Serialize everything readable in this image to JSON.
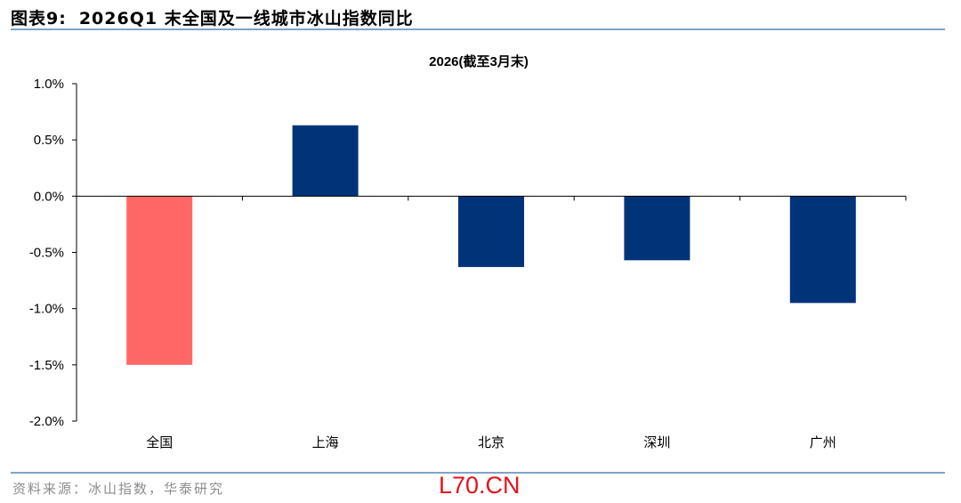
{
  "header": {
    "figure_label": "图表9:",
    "figure_title": "2026Q1 末全国及一线城市冰山指数同比"
  },
  "footer": {
    "source": "资料来源：冰山指数，华泰研究",
    "watermark": "L70.CN"
  },
  "colors": {
    "highlight": "#ff6666",
    "bar": "#003478",
    "rule": "#7fa3c7"
  },
  "chart_data": {
    "type": "bar",
    "title": "2026(截至3月末)",
    "categories": [
      "全国",
      "上海",
      "北京",
      "深圳",
      "广州"
    ],
    "values": [
      -1.5,
      0.63,
      -0.63,
      -0.57,
      -0.95
    ],
    "bar_colors": [
      "#ff6666",
      "#003478",
      "#003478",
      "#003478",
      "#003478"
    ],
    "unit": "%",
    "ylim": [
      -2.0,
      1.0
    ],
    "yticks": [
      "1.0%",
      "0.5%",
      "0.0%",
      "-0.5%",
      "-1.0%",
      "-1.5%",
      "-2.0%"
    ],
    "grid": false,
    "legend": "none"
  }
}
